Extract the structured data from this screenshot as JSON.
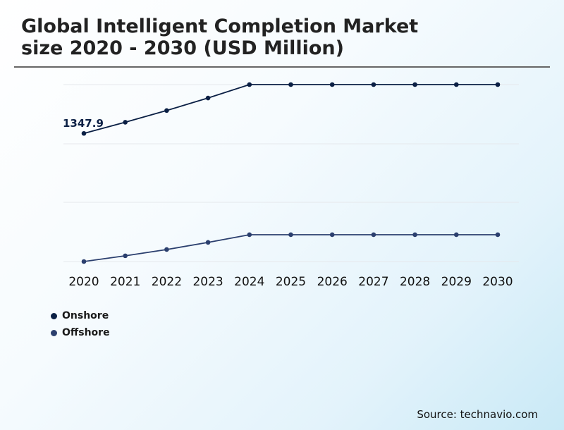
{
  "title_line1": "Global Intelligent Completion Market",
  "title_line2": "size 2020 - 2030 (USD Million)",
  "source": "Source: technavio.com",
  "colors": {
    "onshore": "#0a1f44",
    "offshore": "#2b3f6e",
    "grid": "#e5e8ec",
    "rule": "#666666"
  },
  "chart_data": [
    {
      "type": "line",
      "x": [
        "2020",
        "2021",
        "2022",
        "2023",
        "2024",
        "2025",
        "2026",
        "2027",
        "2028",
        "2029",
        "2030"
      ],
      "series": [
        {
          "name": "Onshore",
          "values": [
            1347.9,
            1426,
            1508,
            1596,
            1690,
            1690,
            1690,
            1690,
            1690,
            1690,
            1690
          ],
          "data_label": "1347.9"
        }
      ]
    },
    {
      "type": "line",
      "x": [
        "2020",
        "2021",
        "2022",
        "2023",
        "2024",
        "2025",
        "2026",
        "2027",
        "2028",
        "2029",
        "2030"
      ],
      "series": [
        {
          "name": "Offshore",
          "values": [
            600,
            641,
            686,
            737,
            792,
            792,
            792,
            792,
            792,
            792,
            792
          ]
        }
      ]
    }
  ],
  "legend": [
    {
      "label": "Onshore",
      "color": "#0a1f44"
    },
    {
      "label": "Offshore",
      "color": "#2b3f6e"
    }
  ]
}
